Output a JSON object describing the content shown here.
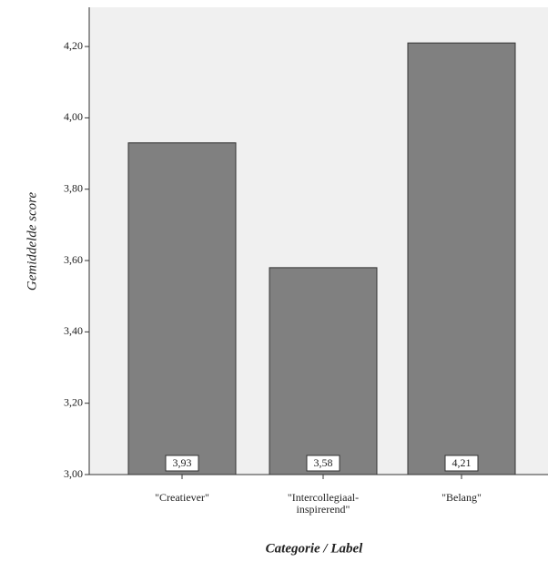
{
  "chart_data": {
    "type": "bar",
    "x_label": "Categorie / Label",
    "y_label": "Gemiddelde score",
    "categories": [
      "\"Creatiever\"",
      "\"Intercollegiaal-inspirerend\"",
      "\"Belang\""
    ],
    "values": [
      3.93,
      3.58,
      4.21
    ],
    "value_labels": [
      "3,93",
      "3,58",
      "4,21"
    ],
    "color": "#808080",
    "ylim": [
      3.0,
      4.31
    ],
    "yticks": [
      {
        "value": 3.0,
        "label": "3,00"
      },
      {
        "value": 3.2,
        "label": "3,20"
      },
      {
        "value": 3.4,
        "label": "3,40"
      },
      {
        "value": 3.6,
        "label": "3,60"
      },
      {
        "value": 3.8,
        "label": "3,80"
      },
      {
        "value": 4.0,
        "label": "4,00"
      },
      {
        "value": 4.2,
        "label": "4,20"
      }
    ]
  }
}
